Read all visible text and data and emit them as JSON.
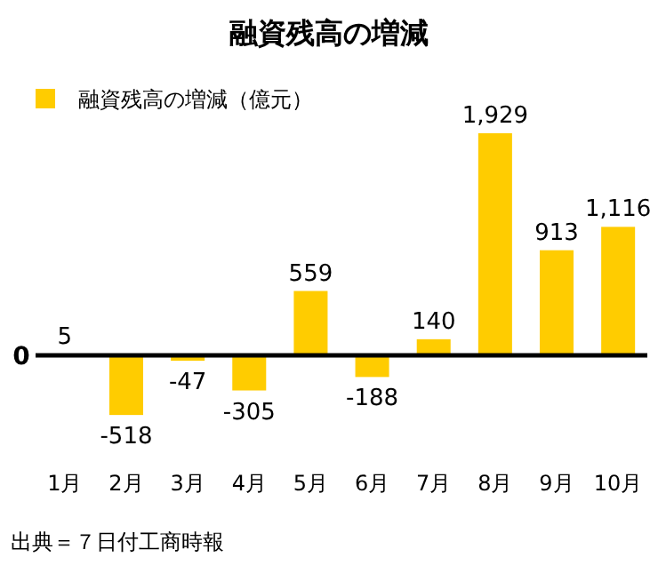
{
  "chart_data": {
    "type": "bar",
    "title": "融資残高の増減",
    "categories": [
      "1月",
      "2月",
      "3月",
      "4月",
      "5月",
      "6月",
      "7月",
      "8月",
      "9月",
      "10月"
    ],
    "series": [
      {
        "name": "融資残高の増減（億元）",
        "color": "#ffcc00",
        "values": [
          5,
          -518,
          -47,
          -305,
          559,
          -188,
          140,
          1929,
          913,
          1116
        ],
        "value_labels": [
          "5",
          "-518",
          "-47",
          "-305",
          "559",
          "-188",
          "140",
          "1,929",
          "913",
          "1,116"
        ]
      }
    ],
    "legend": "top left",
    "ref_lines": [
      {
        "axis": "y",
        "value": 0,
        "label": "0",
        "color": "#000000"
      }
    ],
    "annotations": [
      "出典＝７日付工商時報"
    ]
  }
}
